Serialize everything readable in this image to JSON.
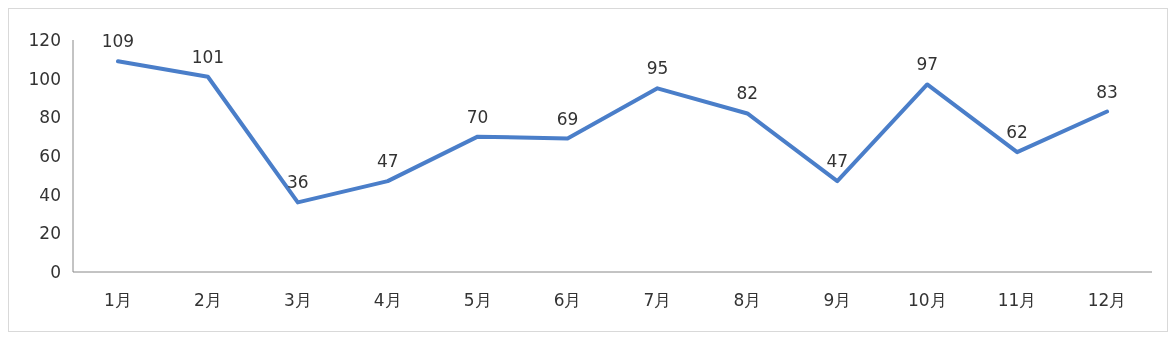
{
  "chart_data": {
    "type": "line",
    "categories": [
      "1月",
      "2月",
      "3月",
      "4月",
      "5月",
      "6月",
      "7月",
      "8月",
      "9月",
      "10月",
      "11月",
      "12月"
    ],
    "series": [
      {
        "color": "#4a7ec9",
        "values": [
          109,
          101,
          36,
          47,
          70,
          69,
          95,
          82,
          47,
          97,
          62,
          83
        ]
      }
    ],
    "ylim": [
      0,
      120
    ],
    "yticks": [
      0,
      20,
      40,
      60,
      80,
      100,
      120
    ],
    "data_labels": true,
    "marker": "none",
    "line_style": "solid"
  }
}
